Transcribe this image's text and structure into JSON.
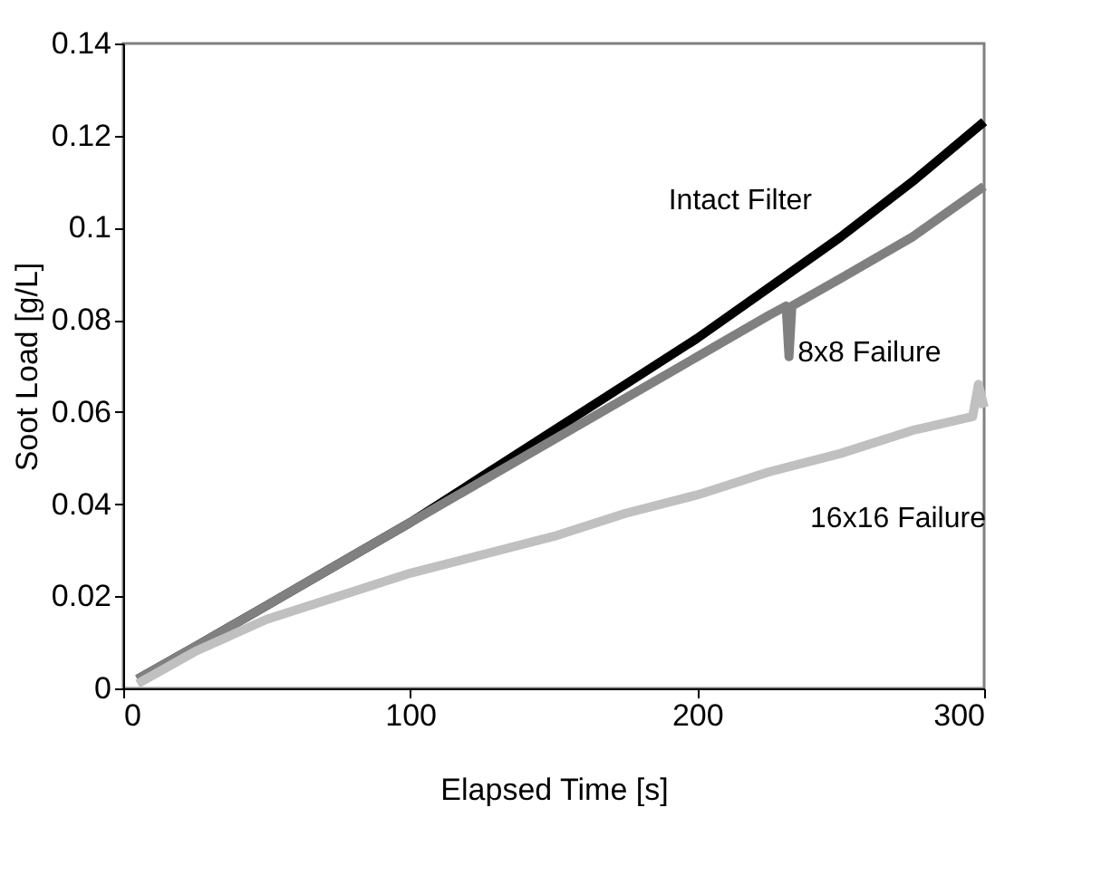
{
  "chart_data": {
    "type": "line",
    "xlabel": "Elapsed Time [s]",
    "ylabel": "Soot Load [g/L]",
    "xlim": [
      0,
      300
    ],
    "xticks": [
      0,
      100,
      200,
      300
    ],
    "ylim": [
      0,
      0.14
    ],
    "yticks": [
      0,
      0.02,
      0.04,
      0.06,
      0.08,
      0.1,
      0.12,
      0.14
    ],
    "grid": false,
    "legend": false,
    "line_style": "solid",
    "marker": "none",
    "series": [
      {
        "name": "Intact Filter",
        "color": "#000000",
        "x": [
          5,
          25,
          50,
          75,
          100,
          125,
          150,
          175,
          200,
          225,
          250,
          275,
          300
        ],
        "values": [
          0.002,
          0.009,
          0.018,
          0.027,
          0.036,
          0.046,
          0.056,
          0.066,
          0.076,
          0.087,
          0.098,
          0.11,
          0.123
        ]
      },
      {
        "name": "8x8 Failure",
        "color": "#808080",
        "x": [
          5,
          25,
          50,
          75,
          100,
          125,
          150,
          175,
          200,
          225,
          231,
          232,
          233,
          250,
          275,
          300
        ],
        "values": [
          0.002,
          0.009,
          0.018,
          0.027,
          0.036,
          0.045,
          0.054,
          0.063,
          0.072,
          0.081,
          0.083,
          0.072,
          0.083,
          0.089,
          0.098,
          0.109
        ]
      },
      {
        "name": "16x16 Failure",
        "color": "#c0c0c0",
        "x": [
          5,
          25,
          50,
          75,
          100,
          125,
          150,
          175,
          200,
          225,
          250,
          275,
          296,
          298,
          300
        ],
        "values": [
          0.001,
          0.008,
          0.015,
          0.02,
          0.025,
          0.029,
          0.033,
          0.038,
          0.042,
          0.047,
          0.051,
          0.056,
          0.059,
          0.066,
          0.061
        ]
      }
    ]
  }
}
